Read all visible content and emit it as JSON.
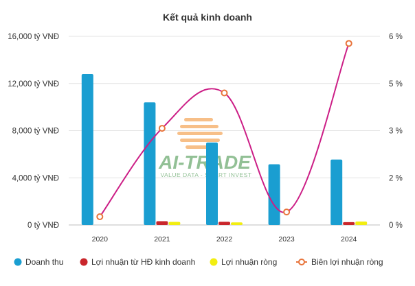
{
  "chart_data": {
    "type": "bar",
    "title": "Kết quả kinh doanh",
    "categories": [
      "2020",
      "2021",
      "2022",
      "2023",
      "2024"
    ],
    "y_left": {
      "ticks": [
        "0 tỷ VNĐ",
        "4,000 tỷ VNĐ",
        "8,000 tỷ VNĐ",
        "12,000 tỷ VNĐ",
        "16,000 tỷ VNĐ"
      ],
      "range": [
        0,
        16000
      ]
    },
    "y_right": {
      "ticks": [
        "0 %",
        "2 %",
        "3 %",
        "5 %",
        "6 %"
      ],
      "range": [
        0,
        8
      ]
    },
    "grid": true,
    "legend_position": "bottom",
    "series": [
      {
        "name": "Doanh thu",
        "kind": "bar",
        "axis": "left",
        "color": "#1a9ed1",
        "values": [
          12800,
          10400,
          7000,
          5150,
          5550
        ]
      },
      {
        "name": "Lợi nhuận từ HĐ kinh doanh",
        "kind": "bar",
        "axis": "left",
        "color": "#c9262b",
        "values": [
          0,
          320,
          270,
          0,
          240
        ]
      },
      {
        "name": "Lợi nhuận ròng",
        "kind": "bar",
        "axis": "left",
        "color": "#f2ee11",
        "values": [
          0,
          260,
          215,
          0,
          290
        ]
      },
      {
        "name": "Biên lợi nhuận ròng",
        "kind": "line",
        "axis": "right",
        "color": "#cc1e86",
        "marker_color": "#e8743b",
        "values": [
          0.35,
          4.1,
          5.6,
          0.55,
          7.7
        ]
      }
    ]
  },
  "watermark": {
    "line1": "AI-TRADE",
    "line2": "VALUE DATA - SMART INVEST",
    "color": "#3a8d3f",
    "accent": "#f28c28"
  }
}
